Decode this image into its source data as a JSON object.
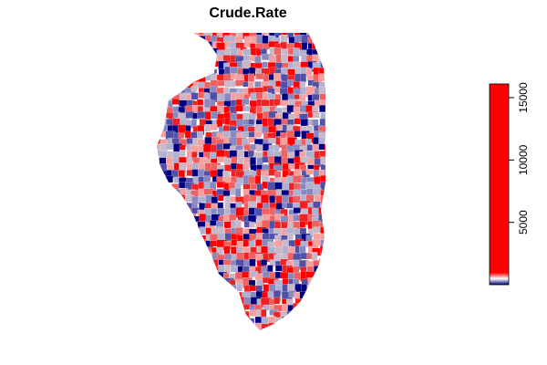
{
  "title": "Crude.Rate",
  "legend": {
    "lim": [
      0,
      16100
    ],
    "ticks": [
      5000,
      10000,
      15000
    ],
    "palette": [
      "#000080",
      "#ffffff",
      "#ff0000"
    ]
  }
}
